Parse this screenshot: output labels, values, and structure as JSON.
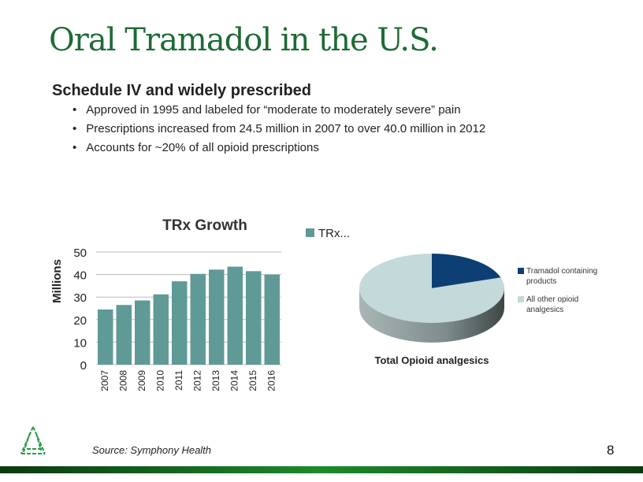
{
  "title": "Oral Tramadol in the U.S.",
  "subtitle": "Schedule IV and widely prescribed",
  "bullets": [
    "Approved in 1995 and labeled for “moderate to moderately severe” pain",
    "Prescriptions increased from 24.5 million in 2007 to over 40.0 million in 2012",
    "Accounts for ~20% of all opioid prescriptions"
  ],
  "source": "Source: Symphony Health",
  "page_number": "8",
  "colors": {
    "title": "#1e6b35",
    "bar": "#5f9a97",
    "tramadol": "#0e3f74",
    "other": "#c4d9d9"
  },
  "chart_data": [
    {
      "type": "bar",
      "title": "TRx Growth",
      "ylabel": "Millions",
      "xlabel": "",
      "legend": "TRx...",
      "legend_position": "top-right",
      "ylim": [
        0,
        50
      ],
      "yticks": [
        0,
        10,
        20,
        30,
        40,
        50
      ],
      "categories": [
        "2007",
        "2008",
        "2009",
        "2010",
        "2011",
        "2012",
        "2013",
        "2014",
        "2015",
        "2016"
      ],
      "values": [
        24.5,
        26.5,
        28.5,
        31.2,
        37,
        40.3,
        42.2,
        43.5,
        41.5,
        40
      ],
      "grid": true
    },
    {
      "type": "pie",
      "title": "Total Opioid analgesics",
      "labels": [
        "Tramadol containing products",
        "All other opioid analgesics"
      ],
      "values": [
        20,
        80
      ],
      "legend_position": "right"
    }
  ]
}
